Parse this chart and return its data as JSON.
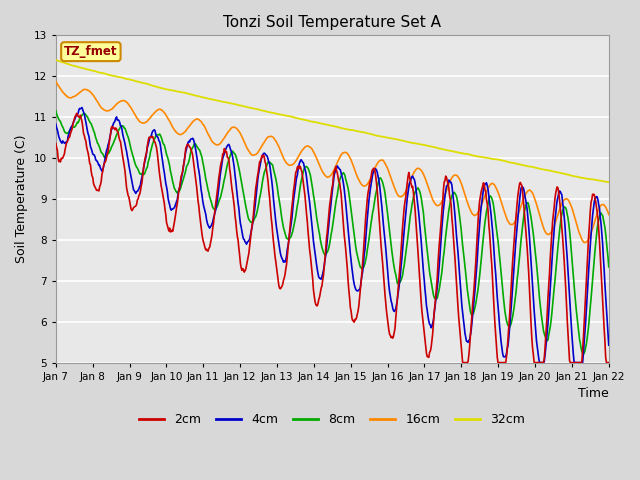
{
  "title": "Tonzi Soil Temperature Set A",
  "xlabel": "Time",
  "ylabel": "Soil Temperature (C)",
  "ylim": [
    5.0,
    13.0
  ],
  "yticks": [
    5.0,
    6.0,
    7.0,
    8.0,
    9.0,
    10.0,
    11.0,
    12.0,
    13.0
  ],
  "xtick_labels": [
    "Jan 7",
    "Jan 8",
    "Jan 9",
    "Jan 10",
    "Jan 11",
    "Jan 12",
    "Jan 13",
    "Jan 14",
    "Jan 15",
    "Jan 16",
    "Jan 17",
    "Jan 18",
    "Jan 19",
    "Jan 20",
    "Jan 21",
    "Jan 22"
  ],
  "colors": {
    "2cm": "#cc0000",
    "4cm": "#0000cc",
    "8cm": "#00aa00",
    "16cm": "#ff8800",
    "32cm": "#dddd00"
  },
  "legend_label": "TZ_fmet",
  "background_color": "#d8d8d8",
  "plot_bg_color": "#e8e8e8"
}
